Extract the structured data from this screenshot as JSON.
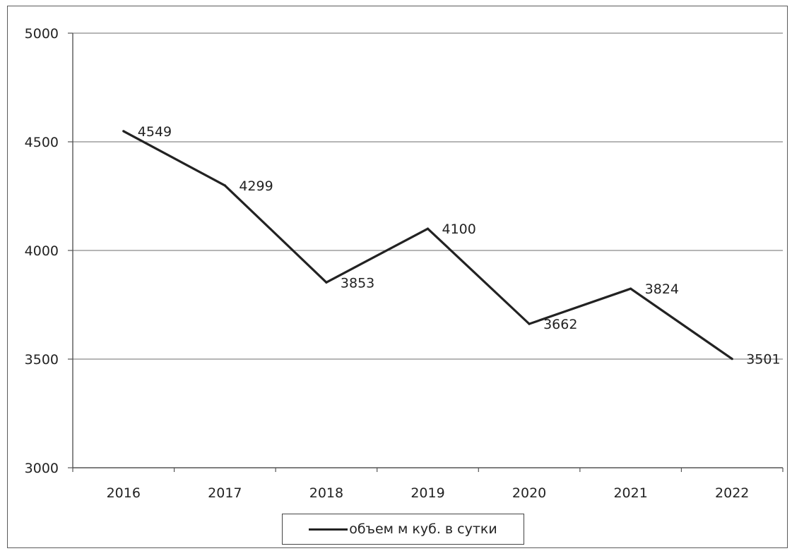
{
  "chart_data": {
    "type": "line",
    "categories": [
      "2016",
      "2017",
      "2018",
      "2019",
      "2020",
      "2021",
      "2022"
    ],
    "series": [
      {
        "name": "объем м куб. в сутки",
        "values": [
          4549,
          4299,
          3853,
          4100,
          3662,
          3824,
          3501
        ],
        "color": "#222222"
      }
    ],
    "yticks": [
      "3000",
      "3500",
      "4000",
      "4500",
      "5000"
    ],
    "ylim": [
      3000,
      5000
    ],
    "grid": true,
    "legend_position": "bottom",
    "data_labels": [
      "4549",
      "4299",
      "3853",
      "4100",
      "3662",
      "3824",
      "3501"
    ]
  }
}
